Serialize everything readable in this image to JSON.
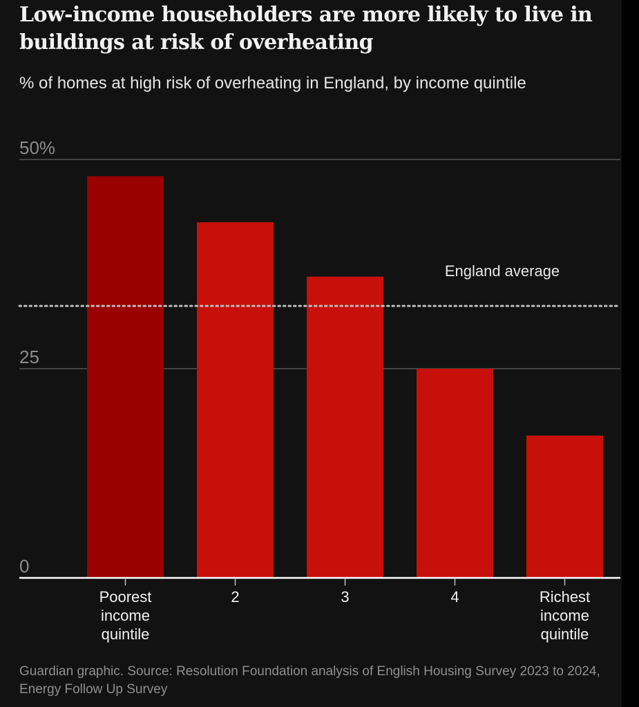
{
  "title": "Low-income householders are more likely to live in buildings at risk of overheating",
  "subtitle": "% of homes at high risk of overheating in England, by income quintile",
  "source": "Guardian graphic. Source: Resolution Foundation analysis of English Housing Survey 2023 to 2024, Energy Follow Up Survey",
  "colors": {
    "highlight": "#9a0000",
    "bar": "#c8100a",
    "background": "#121212",
    "gridline": "#555555",
    "axis": "#ffffff",
    "average_line": "#bdbdbd"
  },
  "chart_data": {
    "type": "bar",
    "title": "Low-income householders are more likely to live in buildings at risk of overheating",
    "subtitle": "% of homes at high risk of overheating in England, by income quintile",
    "categories": [
      [
        "Poorest",
        "income",
        "quintile"
      ],
      [
        "2"
      ],
      [
        "3"
      ],
      [
        "4"
      ],
      [
        "Richest",
        "income",
        "quintile"
      ]
    ],
    "values": [
      48,
      42.5,
      36,
      25,
      17
    ],
    "highlight_index": 0,
    "ylim": [
      0,
      50
    ],
    "yticks": [
      {
        "value": 0,
        "label": "0"
      },
      {
        "value": 25,
        "label": "25"
      },
      {
        "value": 50,
        "label": "50%"
      }
    ],
    "reference_line": {
      "value": 32.5,
      "label": "England average",
      "style": "dotted"
    },
    "grid": true,
    "legend": "none"
  }
}
